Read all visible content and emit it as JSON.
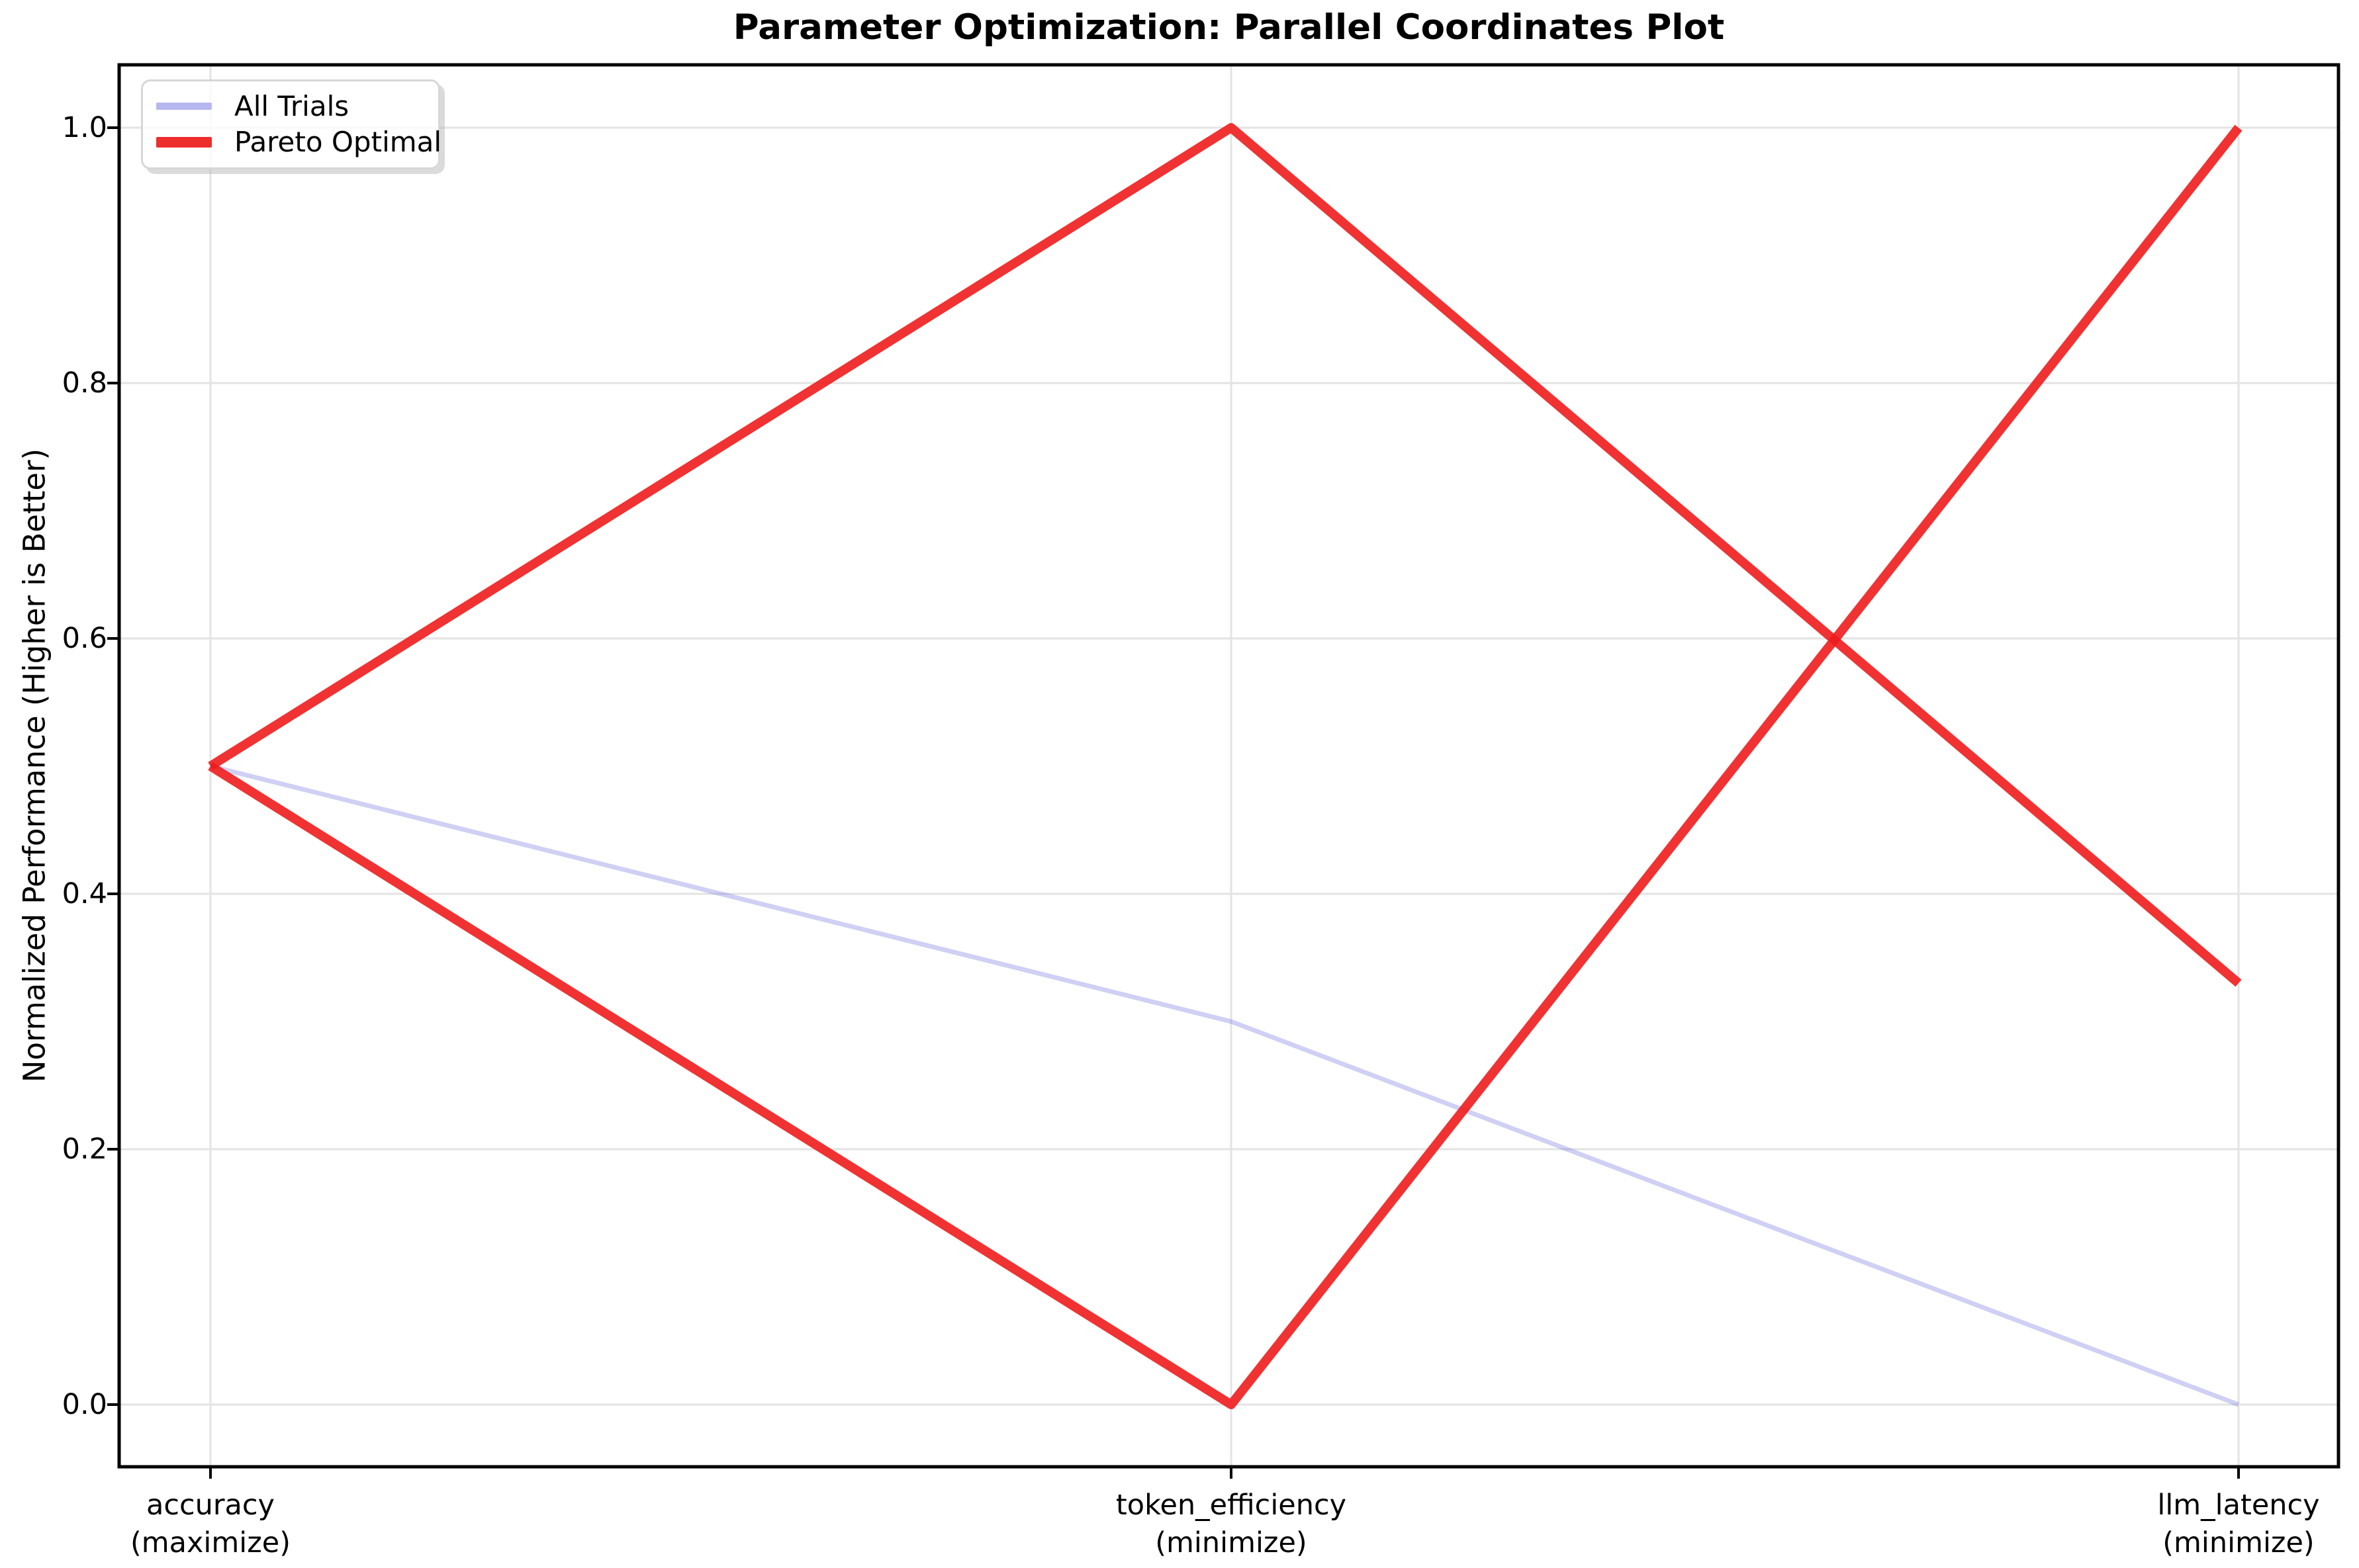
{
  "figure": {
    "background": "#ffffff"
  },
  "title": "Parameter Optimization: Parallel Coordinates Plot",
  "legend": {
    "position": "upper-left",
    "frame_color": "#d7d7d7",
    "items": [
      {
        "label": "All Trials",
        "color": "#b7b7ef",
        "line_thickness": 11
      },
      {
        "label": "Pareto Optimal",
        "color": "#ee2d2d",
        "line_thickness": 16
      }
    ]
  },
  "chart_data": {
    "type": "line",
    "variant": "parallel-coordinates",
    "title": "Parameter Optimization: Parallel Coordinates Plot",
    "xlabel": "",
    "ylabel": "Normalized Performance (Higher is Better)",
    "categories": [
      "accuracy\n(maximize)",
      "token_efficiency\n(minimize)",
      "llm_latency\n(minimize)"
    ],
    "ytick_labels": [
      "0.0",
      "0.2",
      "0.4",
      "0.6",
      "0.8",
      "1.0"
    ],
    "ytick_values": [
      0.0,
      0.2,
      0.4,
      0.6,
      0.8,
      1.0
    ],
    "ylim": [
      -0.05,
      1.05
    ],
    "xlim": [
      -0.1,
      2.1
    ],
    "grid": true,
    "grid_color": "#e3e3e3",
    "axis_color": "#000000",
    "legend_position": "upper left",
    "series": [
      {
        "name": "All Trials",
        "color": "rgba(110,110,225,0.32)",
        "width": 7,
        "values": [
          0.5,
          0.3,
          0.0
        ]
      },
      {
        "name": "Pareto Optimal",
        "color": "rgba(238,28,28,0.9)",
        "width": 14,
        "values": [
          0.5,
          1.0,
          0.33
        ]
      },
      {
        "name": "Pareto Optimal",
        "color": "rgba(238,28,28,0.9)",
        "width": 14,
        "values": [
          0.5,
          0.0,
          1.0
        ]
      }
    ]
  }
}
